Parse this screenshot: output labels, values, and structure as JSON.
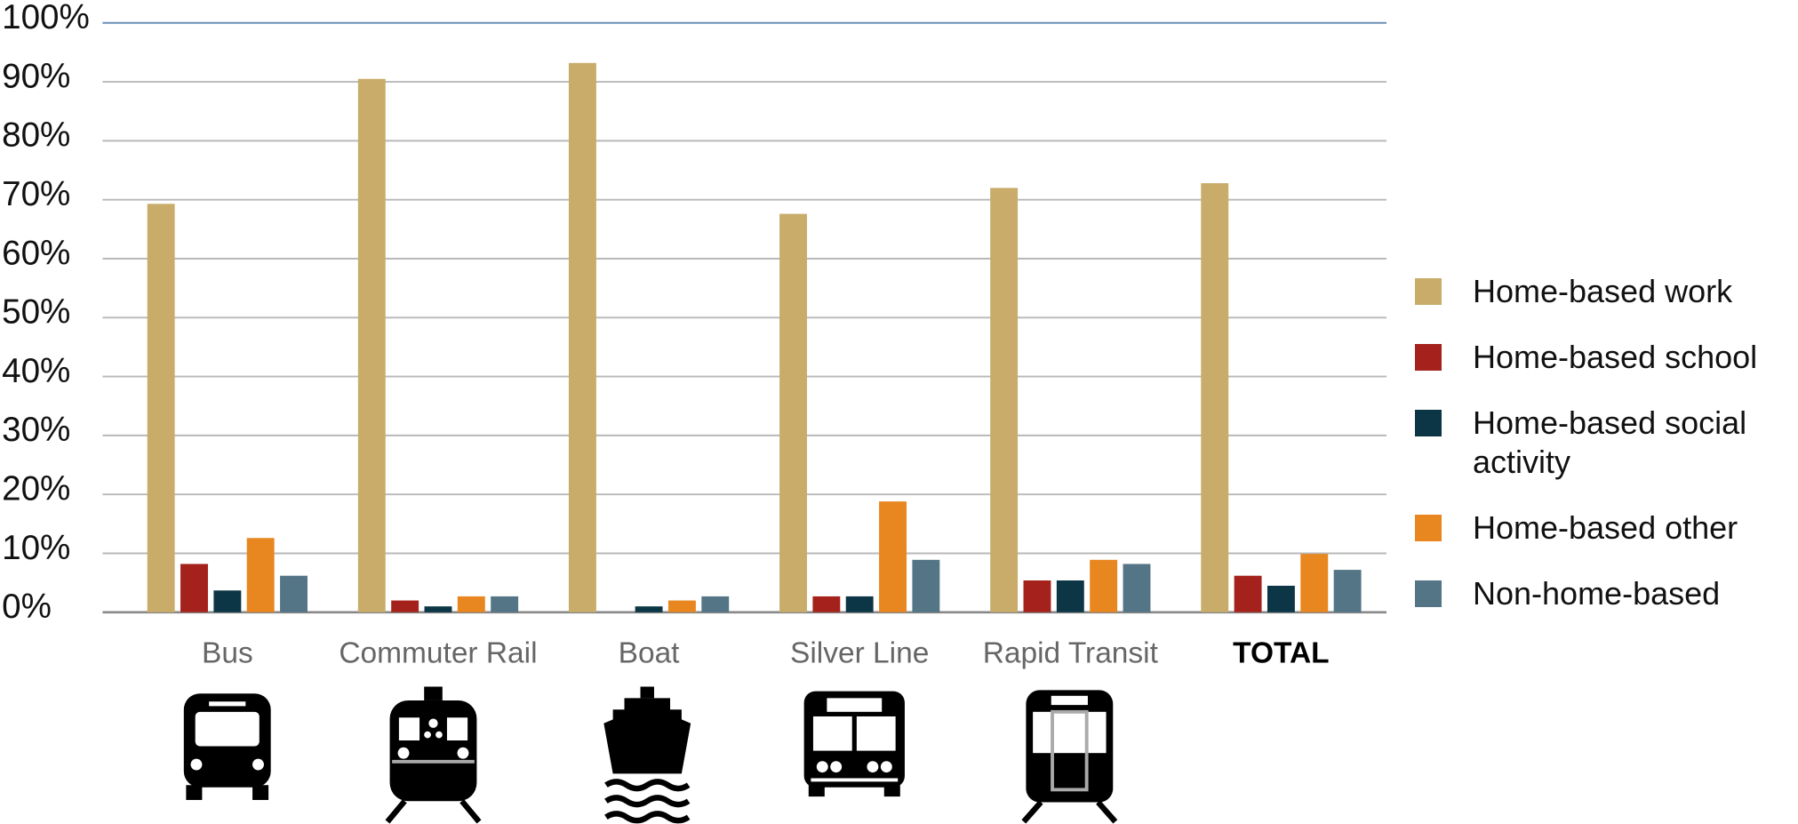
{
  "chart_data": {
    "type": "bar",
    "categories": [
      "Bus",
      "Commuter Rail",
      "Boat",
      "Silver Line",
      "Rapid Transit",
      "TOTAL"
    ],
    "series": [
      {
        "name": "Home-based work",
        "color": "#c9ac6a",
        "values": [
          69.3,
          90.5,
          93.2,
          67.6,
          72,
          72.8
        ]
      },
      {
        "name": "Home-based school",
        "color": "#a4221b",
        "values": [
          8.2,
          2,
          0,
          2.7,
          5.4,
          6.2
        ]
      },
      {
        "name": "Home-based social activity",
        "color": "#0c3645",
        "values": [
          3.7,
          1,
          1,
          2.7,
          5.4,
          4.5
        ]
      },
      {
        "name": "Home-based other",
        "color": "#e8861f",
        "values": [
          12.6,
          2.7,
          2,
          18.8,
          8.9,
          9.9
        ]
      },
      {
        "name": "Non-home-based",
        "color": "#547586",
        "values": [
          6.2,
          2.7,
          2.7,
          8.9,
          8.2,
          7.2
        ]
      }
    ],
    "ylim": [
      0,
      100
    ],
    "yticks": [
      {
        "value": 0,
        "label": "0%"
      },
      {
        "value": 10,
        "label": "10%"
      },
      {
        "value": 20,
        "label": "20%"
      },
      {
        "value": 30,
        "label": "30%"
      },
      {
        "value": 40,
        "label": "40%"
      },
      {
        "value": 50,
        "label": "50%"
      },
      {
        "value": 60,
        "label": "60%"
      },
      {
        "value": 70,
        "label": "70%"
      },
      {
        "value": 80,
        "label": "80%"
      },
      {
        "value": 90,
        "label": "90%"
      },
      {
        "value": 100,
        "label": "100%"
      }
    ],
    "grid": true
  }
}
